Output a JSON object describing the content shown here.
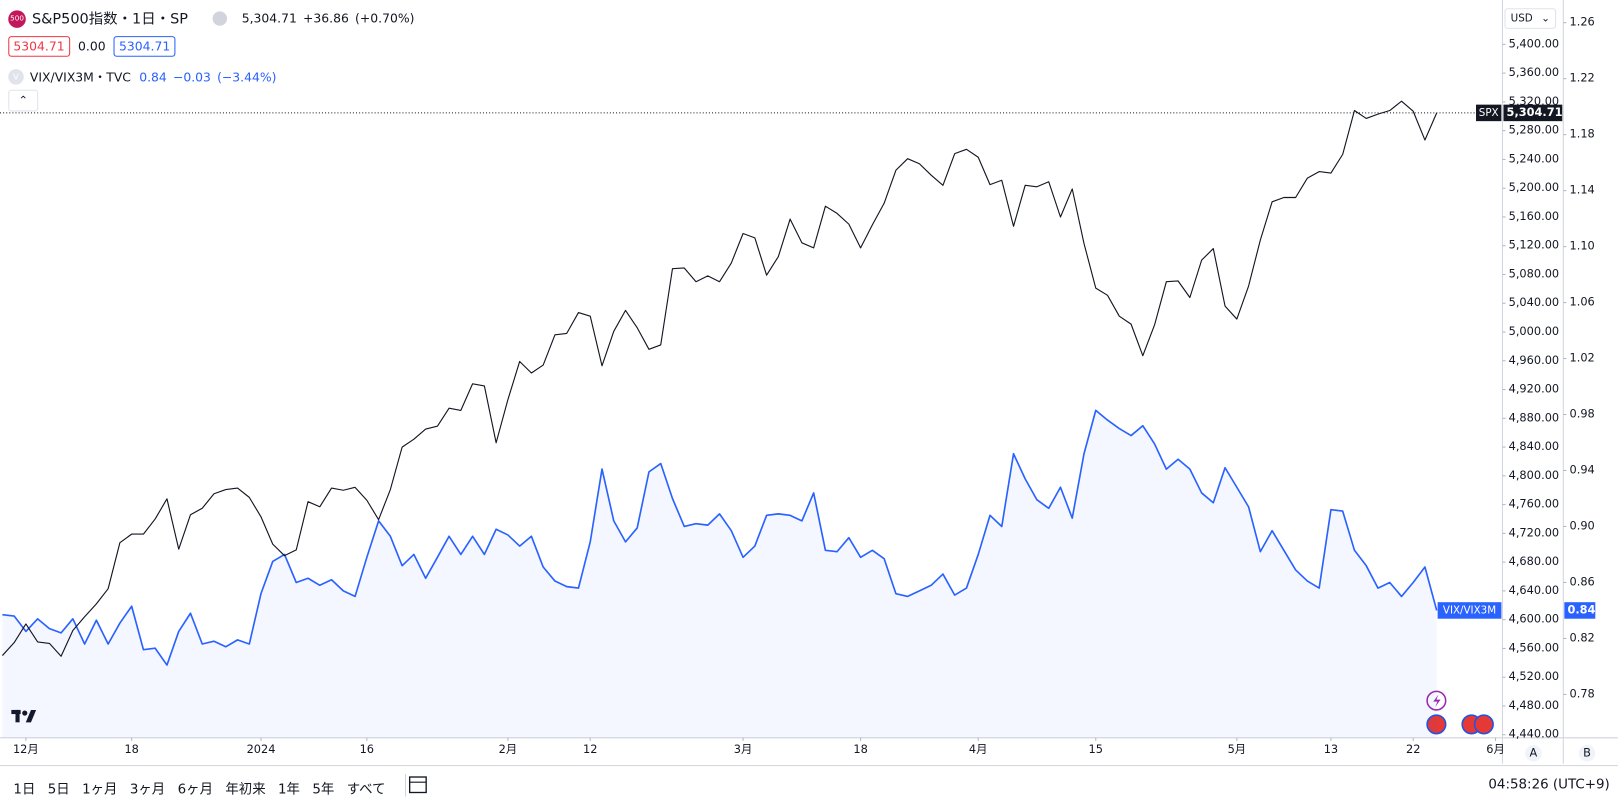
{
  "header": {
    "symbol": "S&P500指数・1日・SP",
    "price": "5,304.71",
    "change": "+36.86",
    "change_pct": "(+0.70%)",
    "sell": "5304.71",
    "spread": "0.00",
    "buy": "5304.71",
    "currency": "USD"
  },
  "overlay": {
    "symbol": "VIX/VIX3M・TVC",
    "price": "0.84",
    "change": "−0.03",
    "change_pct": "(−3.44%)"
  },
  "chart_data": {
    "type": "line",
    "xlim": [
      -0.2,
      127.5
    ],
    "xticks": [
      {
        "value": 2,
        "label": "12月"
      },
      {
        "value": 11,
        "label": "18"
      },
      {
        "value": 22,
        "label": "2024"
      },
      {
        "value": 31,
        "label": "16"
      },
      {
        "value": 43,
        "label": "2月"
      },
      {
        "value": 50,
        "label": "12"
      },
      {
        "value": 63,
        "label": "3月"
      },
      {
        "value": 73,
        "label": "18"
      },
      {
        "value": 83,
        "label": "4月"
      },
      {
        "value": 93,
        "label": "15"
      },
      {
        "value": 105,
        "label": "5月"
      },
      {
        "value": 113,
        "label": "13"
      },
      {
        "value": 120,
        "label": "22"
      },
      {
        "value": 127,
        "label": "6月"
      }
    ],
    "ylim": [
      4435.7,
      5457.4
    ],
    "yticks": [
      {
        "value": 4440,
        "label": "4,440.00"
      },
      {
        "value": 4480,
        "label": "4,480.00"
      },
      {
        "value": 4520,
        "label": "4,520.00"
      },
      {
        "value": 4560,
        "label": "4,560.00"
      },
      {
        "value": 4600,
        "label": "4,600.00"
      },
      {
        "value": 4640,
        "label": "4,640.00"
      },
      {
        "value": 4680,
        "label": "4,680.00"
      },
      {
        "value": 4720,
        "label": "4,720.00"
      },
      {
        "value": 4760,
        "label": "4,760.00"
      },
      {
        "value": 4800,
        "label": "4,800.00"
      },
      {
        "value": 4840,
        "label": "4,840.00"
      },
      {
        "value": 4880,
        "label": "4,880.00"
      },
      {
        "value": 4920,
        "label": "4,920.00"
      },
      {
        "value": 4960,
        "label": "4,960.00"
      },
      {
        "value": 5000,
        "label": "5,000.00"
      },
      {
        "value": 5040,
        "label": "5,040.00"
      },
      {
        "value": 5080,
        "label": "5,080.00"
      },
      {
        "value": 5120,
        "label": "5,120.00"
      },
      {
        "value": 5160,
        "label": "5,160.00"
      },
      {
        "value": 5200,
        "label": "5,200.00"
      },
      {
        "value": 5240,
        "label": "5,240.00"
      },
      {
        "value": 5280,
        "label": "5,280.00"
      },
      {
        "value": 5320,
        "label": "5,320.00"
      },
      {
        "value": 5360,
        "label": "5,360.00"
      },
      {
        "value": 5400,
        "label": "5,400.00"
      }
    ],
    "y2lim": [
      0.749,
      1.274
    ],
    "y2ticks": [
      {
        "value": 0.78,
        "label": "0.78"
      },
      {
        "value": 0.82,
        "label": "0.82"
      },
      {
        "value": 0.86,
        "label": "0.86"
      },
      {
        "value": 0.9,
        "label": "0.90"
      },
      {
        "value": 0.94,
        "label": "0.94"
      },
      {
        "value": 0.98,
        "label": "0.98"
      },
      {
        "value": 1.02,
        "label": "1.02"
      },
      {
        "value": 1.06,
        "label": "1.06"
      },
      {
        "value": 1.1,
        "label": "1.10"
      },
      {
        "value": 1.14,
        "label": "1.14"
      },
      {
        "value": 1.18,
        "label": "1.18"
      },
      {
        "value": 1.22,
        "label": "1.22"
      },
      {
        "value": 1.26,
        "label": "1.26"
      }
    ],
    "series": [
      {
        "name": "SPX",
        "color": "#131722",
        "last_label": "5,304.71",
        "values": [
          4550,
          4568,
          4594,
          4569,
          4567,
          4549,
          4585,
          4604,
          4622,
          4643,
          4707,
          4719,
          4719,
          4740,
          4768,
          4698,
          4746,
          4755,
          4775,
          4781,
          4783,
          4770,
          4743,
          4705,
          4689,
          4697,
          4764,
          4757,
          4783,
          4780,
          4784,
          4766,
          4739,
          4781,
          4840,
          4851,
          4865,
          4869,
          4894,
          4891,
          4928,
          4925,
          4846,
          4906,
          4959,
          4943,
          4954,
          4996,
          4998,
          5027,
          5022,
          4953,
          5001,
          5030,
          5006,
          4976,
          4982,
          5088,
          5089,
          5070,
          5078,
          5070,
          5096,
          5137,
          5131,
          5079,
          5105,
          5157,
          5124,
          5117,
          5175,
          5165,
          5150,
          5117,
          5149,
          5179,
          5225,
          5241,
          5234,
          5218,
          5204,
          5248,
          5254,
          5243,
          5205,
          5211,
          5147,
          5204,
          5202,
          5209,
          5160,
          5199,
          5123,
          5061,
          5051,
          5022,
          5011,
          4967,
          5010,
          5070,
          5071,
          5048,
          5100,
          5116,
          5036,
          5018,
          5064,
          5128,
          5181,
          5187,
          5187,
          5214,
          5223,
          5221,
          5247,
          5308,
          5297,
          5303,
          5308,
          5321,
          5307,
          5267,
          5304.71
        ]
      },
      {
        "name": "VIX/VIX3M",
        "color": "#2962ff",
        "axis": "y2",
        "area": true,
        "values": [
          0.837,
          0.836,
          0.825,
          0.834,
          0.827,
          0.824,
          0.834,
          0.816,
          0.833,
          0.816,
          0.831,
          0.843,
          0.812,
          0.813,
          0.801,
          0.825,
          0.838,
          0.816,
          0.818,
          0.814,
          0.819,
          0.816,
          0.852,
          0.875,
          0.88,
          0.86,
          0.863,
          0.858,
          0.862,
          0.854,
          0.85,
          0.878,
          0.904,
          0.893,
          0.872,
          0.88,
          0.863,
          0.878,
          0.893,
          0.88,
          0.893,
          0.88,
          0.898,
          0.894,
          0.886,
          0.893,
          0.871,
          0.861,
          0.857,
          0.856,
          0.889,
          0.941,
          0.904,
          0.889,
          0.899,
          0.939,
          0.945,
          0.92,
          0.9,
          0.902,
          0.901,
          0.909,
          0.897,
          0.878,
          0.886,
          0.908,
          0.909,
          0.908,
          0.904,
          0.924,
          0.883,
          0.882,
          0.892,
          0.878,
          0.883,
          0.877,
          0.852,
          0.85,
          0.854,
          0.858,
          0.866,
          0.851,
          0.856,
          0.88,
          0.908,
          0.9,
          0.952,
          0.934,
          0.919,
          0.913,
          0.928,
          0.906,
          0.952,
          0.983,
          0.976,
          0.97,
          0.965,
          0.972,
          0.959,
          0.941,
          0.948,
          0.941,
          0.924,
          0.917,
          0.942,
          0.928,
          0.914,
          0.882,
          0.897,
          0.883,
          0.869,
          0.861,
          0.856,
          0.912,
          0.911,
          0.883,
          0.872,
          0.856,
          0.86,
          0.85,
          0.86,
          0.871,
          0.84
        ]
      }
    ]
  },
  "toolbar": {
    "ranges": [
      "1日",
      "5日",
      "1ヶ月",
      "3ヶ月",
      "6ヶ月",
      "年初来",
      "1年",
      "5年",
      "すべて"
    ],
    "time": "04:58:26 (UTC+9)"
  },
  "scale_buttons": [
    "A",
    "B"
  ]
}
